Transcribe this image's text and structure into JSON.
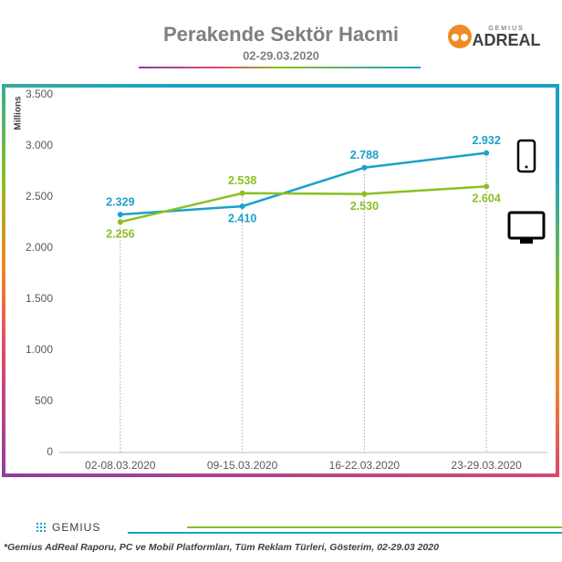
{
  "chart_data": {
    "type": "line",
    "title": "Perakende Sektör Hacmi",
    "subtitle": "02-29.03.2020",
    "y_label": "Millions",
    "logo": {
      "brand": "GEMIUS",
      "product": "ADREAL"
    },
    "footer_brand": "GEMIUS",
    "footnote": "*Gemius AdReal Raporu, PC ve Mobil Platformları, Tüm Reklam Türleri, Gösterim, 02-29.03 2020",
    "categories": [
      "02-08.03.2020",
      "09-15.03.2020",
      "16-22.03.2020",
      "23-29.03.2020"
    ],
    "series": [
      {
        "color": "#1ba1c8",
        "values": [
          2329,
          2410,
          2788,
          2932
        ],
        "value_labels": [
          "2.329",
          "2.410",
          "2.788",
          "2.932"
        ]
      },
      {
        "color": "#8cbf22",
        "values": [
          2256,
          2538,
          2530,
          2604
        ],
        "value_labels": [
          "2.256",
          "2.538",
          "2.530",
          "2.604"
        ]
      }
    ],
    "ylim": [
      0,
      3500
    ],
    "yticks": [
      0,
      500,
      {
        "value": 1000,
        "label": "1.000"
      },
      {
        "value": 1500,
        "label": "1.500"
      },
      {
        "value": 2000,
        "label": "2.000"
      },
      {
        "value": 2500,
        "label": "2.500"
      },
      {
        "value": 3000,
        "label": "3.000"
      },
      {
        "value": 3500,
        "label": "3.500"
      }
    ],
    "grid": false
  }
}
